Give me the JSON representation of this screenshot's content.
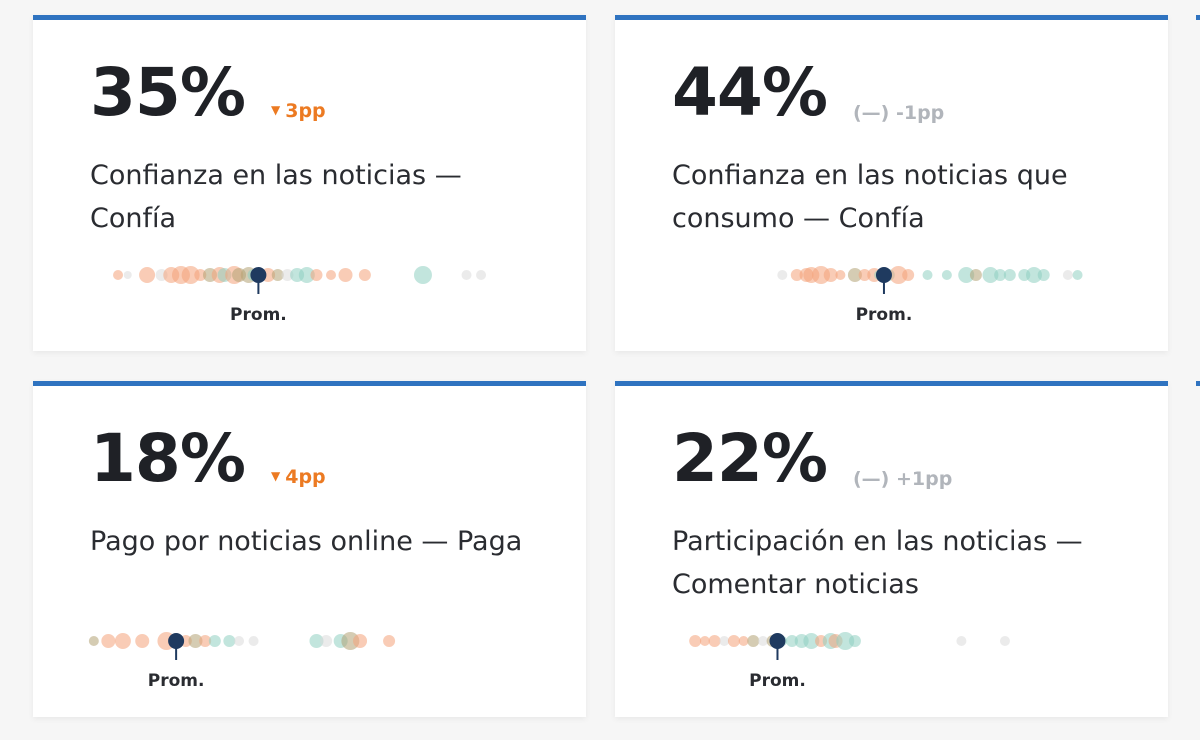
{
  "colors": {
    "card_top_border": "#2f73c0",
    "value_text": "#1f2126",
    "delta_down": "#ec7a22",
    "delta_flat": "#b1b5bb",
    "avg_marker": "#1f3a5f",
    "dot_orange": "#f4a27a",
    "dot_olive": "#b3a275",
    "dot_teal": "#8fd0c1",
    "dot_grey": "#dadada"
  },
  "delta_icons": {
    "down": "down-triangle-icon",
    "flat": "dash-icon"
  },
  "cards": [
    {
      "value": "35%",
      "delta": "3pp",
      "delta_style": "down",
      "label": "Confianza en las noticias — Confía",
      "avg_label": "Prom.",
      "chart_data": {
        "type": "scatter",
        "axis_range": [
          0,
          100
        ],
        "average": 35,
        "dots": [
          {
            "v": 6,
            "r": 5,
            "c": "o"
          },
          {
            "v": 8,
            "r": 4,
            "c": "g"
          },
          {
            "v": 12,
            "r": 8,
            "c": "o"
          },
          {
            "v": 15,
            "r": 6,
            "c": "g"
          },
          {
            "v": 17,
            "r": 8,
            "c": "o"
          },
          {
            "v": 19,
            "r": 9,
            "c": "o"
          },
          {
            "v": 21,
            "r": 9,
            "c": "o"
          },
          {
            "v": 23,
            "r": 6,
            "c": "o"
          },
          {
            "v": 25,
            "r": 7,
            "c": "y"
          },
          {
            "v": 27,
            "r": 8,
            "c": "o"
          },
          {
            "v": 28,
            "r": 7,
            "c": "t"
          },
          {
            "v": 30,
            "r": 9,
            "c": "o"
          },
          {
            "v": 31,
            "r": 7,
            "c": "y"
          },
          {
            "v": 33,
            "r": 8,
            "c": "y"
          },
          {
            "v": 34,
            "r": 6,
            "c": "t"
          },
          {
            "v": 37,
            "r": 7,
            "c": "o"
          },
          {
            "v": 39,
            "r": 6,
            "c": "y"
          },
          {
            "v": 41,
            "r": 6,
            "c": "g"
          },
          {
            "v": 43,
            "r": 7,
            "c": "t"
          },
          {
            "v": 45,
            "r": 8,
            "c": "t"
          },
          {
            "v": 47,
            "r": 6,
            "c": "o"
          },
          {
            "v": 50,
            "r": 5,
            "c": "o"
          },
          {
            "v": 53,
            "r": 7,
            "c": "o"
          },
          {
            "v": 57,
            "r": 6,
            "c": "o"
          },
          {
            "v": 69,
            "r": 9,
            "c": "t"
          },
          {
            "v": 78,
            "r": 5,
            "c": "g"
          },
          {
            "v": 81,
            "r": 5,
            "c": "g"
          }
        ]
      }
    },
    {
      "value": "44%",
      "delta": "(—) -1pp",
      "delta_style": "flat",
      "label": "Confianza en las noticias que consumo — Confía",
      "avg_label": "Prom.",
      "chart_data": {
        "type": "scatter",
        "axis_range": [
          0,
          100
        ],
        "average": 44,
        "dots": [
          {
            "v": 23,
            "r": 5,
            "c": "g"
          },
          {
            "v": 26,
            "r": 6,
            "c": "o"
          },
          {
            "v": 28,
            "r": 7,
            "c": "o"
          },
          {
            "v": 29,
            "r": 8,
            "c": "o"
          },
          {
            "v": 31,
            "r": 9,
            "c": "o"
          },
          {
            "v": 33,
            "r": 7,
            "c": "o"
          },
          {
            "v": 35,
            "r": 5,
            "c": "o"
          },
          {
            "v": 38,
            "r": 7,
            "c": "y"
          },
          {
            "v": 40,
            "r": 6,
            "c": "o"
          },
          {
            "v": 42,
            "r": 7,
            "c": "o"
          },
          {
            "v": 43,
            "r": 5,
            "c": "t"
          },
          {
            "v": 45,
            "r": 6,
            "c": "t"
          },
          {
            "v": 47,
            "r": 9,
            "c": "o"
          },
          {
            "v": 49,
            "r": 6,
            "c": "o"
          },
          {
            "v": 53,
            "r": 5,
            "c": "t"
          },
          {
            "v": 57,
            "r": 5,
            "c": "t"
          },
          {
            "v": 61,
            "r": 8,
            "c": "t"
          },
          {
            "v": 63,
            "r": 6,
            "c": "y"
          },
          {
            "v": 66,
            "r": 8,
            "c": "t"
          },
          {
            "v": 68,
            "r": 6,
            "c": "t"
          },
          {
            "v": 70,
            "r": 6,
            "c": "t"
          },
          {
            "v": 73,
            "r": 6,
            "c": "t"
          },
          {
            "v": 75,
            "r": 8,
            "c": "t"
          },
          {
            "v": 77,
            "r": 6,
            "c": "t"
          },
          {
            "v": 82,
            "r": 5,
            "c": "g"
          },
          {
            "v": 84,
            "r": 5,
            "c": "t"
          }
        ]
      }
    },
    {
      "value": "18%",
      "delta": "4pp",
      "delta_style": "down",
      "label": "Pago por noticias online — Paga",
      "avg_label": "Prom.",
      "chart_data": {
        "type": "scatter",
        "axis_range": [
          0,
          100
        ],
        "average": 18,
        "dots": [
          {
            "v": 1,
            "r": 5,
            "c": "y"
          },
          {
            "v": 4,
            "r": 7,
            "c": "o"
          },
          {
            "v": 7,
            "r": 8,
            "c": "o"
          },
          {
            "v": 11,
            "r": 7,
            "c": "o"
          },
          {
            "v": 16,
            "r": 9,
            "c": "o"
          },
          {
            "v": 18,
            "r": 7,
            "c": "y"
          },
          {
            "v": 20,
            "r": 6,
            "c": "o"
          },
          {
            "v": 22,
            "r": 7,
            "c": "y"
          },
          {
            "v": 24,
            "r": 6,
            "c": "o"
          },
          {
            "v": 26,
            "r": 6,
            "c": "t"
          },
          {
            "v": 29,
            "r": 6,
            "c": "t"
          },
          {
            "v": 31,
            "r": 5,
            "c": "g"
          },
          {
            "v": 34,
            "r": 5,
            "c": "g"
          },
          {
            "v": 47,
            "r": 7,
            "c": "t"
          },
          {
            "v": 49,
            "r": 6,
            "c": "g"
          },
          {
            "v": 52,
            "r": 7,
            "c": "t"
          },
          {
            "v": 54,
            "r": 9,
            "c": "y"
          },
          {
            "v": 56,
            "r": 7,
            "c": "o"
          },
          {
            "v": 62,
            "r": 6,
            "c": "o"
          }
        ]
      }
    },
    {
      "value": "22%",
      "delta": "(—) +1pp",
      "delta_style": "flat",
      "label": "Participación en las noticias — Comentar noticias",
      "avg_label": "Prom.",
      "chart_data": {
        "type": "scatter",
        "axis_range": [
          0,
          100
        ],
        "average": 22,
        "dots": [
          {
            "v": 5,
            "r": 6,
            "c": "o"
          },
          {
            "v": 7,
            "r": 5,
            "c": "o"
          },
          {
            "v": 9,
            "r": 6,
            "c": "o"
          },
          {
            "v": 11,
            "r": 5,
            "c": "g"
          },
          {
            "v": 13,
            "r": 6,
            "c": "o"
          },
          {
            "v": 15,
            "r": 5,
            "c": "o"
          },
          {
            "v": 17,
            "r": 6,
            "c": "y"
          },
          {
            "v": 19,
            "r": 5,
            "c": "g"
          },
          {
            "v": 21,
            "r": 6,
            "c": "y"
          },
          {
            "v": 23,
            "r": 5,
            "c": "t"
          },
          {
            "v": 25,
            "r": 6,
            "c": "t"
          },
          {
            "v": 27,
            "r": 7,
            "c": "t"
          },
          {
            "v": 29,
            "r": 8,
            "c": "t"
          },
          {
            "v": 31,
            "r": 6,
            "c": "o"
          },
          {
            "v": 33,
            "r": 8,
            "c": "t"
          },
          {
            "v": 34,
            "r": 7,
            "c": "o"
          },
          {
            "v": 36,
            "r": 9,
            "c": "t"
          },
          {
            "v": 38,
            "r": 6,
            "c": "t"
          },
          {
            "v": 60,
            "r": 5,
            "c": "g"
          },
          {
            "v": 69,
            "r": 5,
            "c": "g"
          }
        ]
      }
    }
  ]
}
